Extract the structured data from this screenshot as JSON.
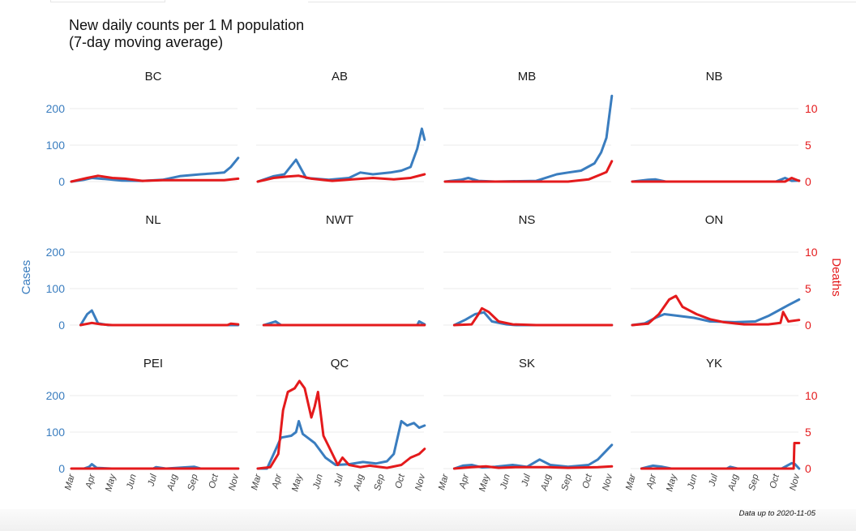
{
  "title_line1": "New daily counts per 1 M population",
  "title_line2": "(7-day moving average)",
  "footer": "Data up to 2020-11-05",
  "chart_data": {
    "type": "line",
    "facets": [
      "BC",
      "AB",
      "MB",
      "NB",
      "NL",
      "NWT",
      "NS",
      "ON",
      "PEI",
      "QC",
      "SK",
      "YK"
    ],
    "ylabel_left": "Cases",
    "ylabel_right": "Deaths",
    "ylim_left": [
      0,
      250
    ],
    "ylim_right": [
      0,
      12.5
    ],
    "yticks_left": [
      "0",
      "100",
      "200"
    ],
    "yticks_right": [
      "0",
      "5",
      "10"
    ],
    "xticks": [
      "Mar",
      "Apr",
      "May",
      "Jun",
      "Jul",
      "Aug",
      "Sep",
      "Oct",
      "Nov"
    ],
    "colors": {
      "Cases": "#3a7dbf",
      "Deaths": "#e41a1c"
    },
    "grid": true,
    "series": {
      "BC": {
        "Cases": [
          [
            "2020-03-01",
            0
          ],
          [
            "2020-03-20",
            5
          ],
          [
            "2020-04-01",
            10
          ],
          [
            "2020-04-20",
            7
          ],
          [
            "2020-05-15",
            3
          ],
          [
            "2020-06-15",
            2
          ],
          [
            "2020-07-15",
            5
          ],
          [
            "2020-08-10",
            15
          ],
          [
            "2020-09-10",
            20
          ],
          [
            "2020-10-01",
            23
          ],
          [
            "2020-10-15",
            25
          ],
          [
            "2020-10-25",
            40
          ],
          [
            "2020-11-05",
            65
          ]
        ],
        "Deaths": [
          [
            "2020-03-01",
            0
          ],
          [
            "2020-03-25",
            0.5
          ],
          [
            "2020-04-10",
            0.8
          ],
          [
            "2020-05-01",
            0.5
          ],
          [
            "2020-05-20",
            0.4
          ],
          [
            "2020-06-15",
            0.1
          ],
          [
            "2020-07-15",
            0.2
          ],
          [
            "2020-08-15",
            0.2
          ],
          [
            "2020-09-15",
            0.2
          ],
          [
            "2020-10-15",
            0.2
          ],
          [
            "2020-11-05",
            0.4
          ]
        ]
      },
      "AB": {
        "Cases": [
          [
            "2020-03-01",
            0
          ],
          [
            "2020-03-25",
            15
          ],
          [
            "2020-04-10",
            20
          ],
          [
            "2020-04-27",
            60
          ],
          [
            "2020-05-12",
            10
          ],
          [
            "2020-06-15",
            5
          ],
          [
            "2020-07-15",
            10
          ],
          [
            "2020-08-01",
            25
          ],
          [
            "2020-08-20",
            20
          ],
          [
            "2020-09-15",
            25
          ],
          [
            "2020-10-01",
            30
          ],
          [
            "2020-10-15",
            40
          ],
          [
            "2020-10-25",
            90
          ],
          [
            "2020-11-01",
            145
          ],
          [
            "2020-11-05",
            115
          ]
        ],
        "Deaths": [
          [
            "2020-03-01",
            0
          ],
          [
            "2020-03-25",
            0.5
          ],
          [
            "2020-04-15",
            0.7
          ],
          [
            "2020-05-01",
            0.8
          ],
          [
            "2020-05-20",
            0.4
          ],
          [
            "2020-06-20",
            0.1
          ],
          [
            "2020-07-20",
            0.3
          ],
          [
            "2020-08-20",
            0.5
          ],
          [
            "2020-09-20",
            0.3
          ],
          [
            "2020-10-15",
            0.5
          ],
          [
            "2020-11-05",
            1.0
          ]
        ]
      },
      "MB": {
        "Cases": [
          [
            "2020-03-01",
            0
          ],
          [
            "2020-03-25",
            5
          ],
          [
            "2020-04-05",
            10
          ],
          [
            "2020-04-20",
            2
          ],
          [
            "2020-05-15",
            0
          ],
          [
            "2020-07-15",
            2
          ],
          [
            "2020-08-15",
            20
          ],
          [
            "2020-09-01",
            25
          ],
          [
            "2020-09-20",
            30
          ],
          [
            "2020-10-10",
            50
          ],
          [
            "2020-10-20",
            80
          ],
          [
            "2020-10-28",
            120
          ],
          [
            "2020-11-05",
            235
          ]
        ],
        "Deaths": [
          [
            "2020-03-01",
            0
          ],
          [
            "2020-09-01",
            0
          ],
          [
            "2020-10-01",
            0.3
          ],
          [
            "2020-10-20",
            1.0
          ],
          [
            "2020-10-28",
            1.3
          ],
          [
            "2020-11-05",
            2.8
          ]
        ]
      },
      "NB": {
        "Cases": [
          [
            "2020-03-01",
            0
          ],
          [
            "2020-03-25",
            5
          ],
          [
            "2020-04-05",
            6
          ],
          [
            "2020-04-20",
            0
          ],
          [
            "2020-10-01",
            0
          ],
          [
            "2020-10-15",
            10
          ],
          [
            "2020-10-25",
            2
          ],
          [
            "2020-11-05",
            3
          ]
        ],
        "Deaths": [
          [
            "2020-03-01",
            0
          ],
          [
            "2020-10-15",
            0
          ],
          [
            "2020-10-25",
            0.5
          ],
          [
            "2020-11-05",
            0.1
          ]
        ]
      },
      "NL": {
        "Cases": [
          [
            "2020-03-15",
            0
          ],
          [
            "2020-03-25",
            30
          ],
          [
            "2020-04-01",
            40
          ],
          [
            "2020-04-10",
            5
          ],
          [
            "2020-04-25",
            0
          ],
          [
            "2020-11-05",
            0
          ]
        ],
        "Deaths": [
          [
            "2020-03-15",
            0
          ],
          [
            "2020-04-01",
            0.3
          ],
          [
            "2020-04-15",
            0.1
          ],
          [
            "2020-05-01",
            0
          ],
          [
            "2020-10-20",
            0
          ],
          [
            "2020-10-25",
            0.2
          ],
          [
            "2020-11-05",
            0.1
          ]
        ]
      },
      "NWT": {
        "Cases": [
          [
            "2020-03-10",
            0
          ],
          [
            "2020-03-28",
            10
          ],
          [
            "2020-04-05",
            0
          ],
          [
            "2020-10-25",
            0
          ],
          [
            "2020-10-28",
            10
          ],
          [
            "2020-11-05",
            2
          ]
        ],
        "Deaths": [
          [
            "2020-03-10",
            0
          ],
          [
            "2020-11-05",
            0
          ]
        ]
      },
      "NS": {
        "Cases": [
          [
            "2020-03-15",
            0
          ],
          [
            "2020-04-01",
            15
          ],
          [
            "2020-04-15",
            30
          ],
          [
            "2020-04-28",
            35
          ],
          [
            "2020-05-10",
            10
          ],
          [
            "2020-06-01",
            2
          ],
          [
            "2020-06-15",
            0
          ],
          [
            "2020-11-05",
            0
          ]
        ],
        "Deaths": [
          [
            "2020-03-15",
            0
          ],
          [
            "2020-04-10",
            0.1
          ],
          [
            "2020-04-20",
            1.5
          ],
          [
            "2020-04-25",
            2.3
          ],
          [
            "2020-05-05",
            1.8
          ],
          [
            "2020-05-20",
            0.5
          ],
          [
            "2020-06-10",
            0.1
          ],
          [
            "2020-07-15",
            0
          ],
          [
            "2020-11-05",
            0
          ]
        ]
      },
      "ON": {
        "Cases": [
          [
            "2020-03-01",
            0
          ],
          [
            "2020-03-20",
            5
          ],
          [
            "2020-04-05",
            20
          ],
          [
            "2020-04-18",
            30
          ],
          [
            "2020-05-10",
            25
          ],
          [
            "2020-06-01",
            20
          ],
          [
            "2020-06-25",
            10
          ],
          [
            "2020-08-01",
            8
          ],
          [
            "2020-09-01",
            10
          ],
          [
            "2020-09-20",
            25
          ],
          [
            "2020-10-05",
            40
          ],
          [
            "2020-10-20",
            55
          ],
          [
            "2020-11-05",
            70
          ]
        ],
        "Deaths": [
          [
            "2020-03-01",
            0
          ],
          [
            "2020-03-25",
            0.2
          ],
          [
            "2020-04-10",
            1.5
          ],
          [
            "2020-04-25",
            3.5
          ],
          [
            "2020-05-05",
            4.0
          ],
          [
            "2020-05-15",
            2.5
          ],
          [
            "2020-06-05",
            1.5
          ],
          [
            "2020-06-25",
            0.8
          ],
          [
            "2020-07-15",
            0.4
          ],
          [
            "2020-08-15",
            0.1
          ],
          [
            "2020-09-20",
            0.1
          ],
          [
            "2020-10-08",
            0.3
          ],
          [
            "2020-10-12",
            1.8
          ],
          [
            "2020-10-20",
            0.5
          ],
          [
            "2020-11-05",
            0.7
          ]
        ]
      },
      "PEI": {
        "Cases": [
          [
            "2020-03-20",
            0
          ],
          [
            "2020-03-28",
            5
          ],
          [
            "2020-04-01",
            12
          ],
          [
            "2020-04-08",
            2
          ],
          [
            "2020-04-30",
            0
          ],
          [
            "2020-07-01",
            0
          ],
          [
            "2020-07-05",
            4
          ],
          [
            "2020-07-20",
            0
          ],
          [
            "2020-08-15",
            3
          ],
          [
            "2020-09-01",
            5
          ],
          [
            "2020-09-10",
            0
          ],
          [
            "2020-11-05",
            0
          ]
        ],
        "Deaths": [
          [
            "2020-03-01",
            0
          ],
          [
            "2020-11-05",
            0
          ]
        ]
      },
      "QC": {
        "Cases": [
          [
            "2020-03-01",
            0
          ],
          [
            "2020-03-15",
            0
          ],
          [
            "2020-03-25",
            40
          ],
          [
            "2020-04-05",
            85
          ],
          [
            "2020-04-20",
            90
          ],
          [
            "2020-04-27",
            100
          ],
          [
            "2020-05-01",
            130
          ],
          [
            "2020-05-07",
            95
          ],
          [
            "2020-05-25",
            70
          ],
          [
            "2020-06-10",
            30
          ],
          [
            "2020-06-25",
            10
          ],
          [
            "2020-07-15",
            12
          ],
          [
            "2020-08-05",
            18
          ],
          [
            "2020-08-25",
            14
          ],
          [
            "2020-09-10",
            20
          ],
          [
            "2020-09-20",
            40
          ],
          [
            "2020-10-01",
            130
          ],
          [
            "2020-10-10",
            118
          ],
          [
            "2020-10-20",
            125
          ],
          [
            "2020-10-28",
            112
          ],
          [
            "2020-11-05",
            118
          ]
        ],
        "Deaths": [
          [
            "2020-03-01",
            0
          ],
          [
            "2020-03-20",
            0.2
          ],
          [
            "2020-04-01",
            2.0
          ],
          [
            "2020-04-08",
            8.0
          ],
          [
            "2020-04-15",
            10.5
          ],
          [
            "2020-04-25",
            11.0
          ],
          [
            "2020-05-02",
            12.0
          ],
          [
            "2020-05-10",
            11.0
          ],
          [
            "2020-05-20",
            7.0
          ],
          [
            "2020-05-25",
            8.5
          ],
          [
            "2020-05-30",
            10.5
          ],
          [
            "2020-06-07",
            4.5
          ],
          [
            "2020-06-15",
            3.0
          ],
          [
            "2020-06-28",
            0.5
          ],
          [
            "2020-07-05",
            1.5
          ],
          [
            "2020-07-15",
            0.5
          ],
          [
            "2020-08-01",
            0.2
          ],
          [
            "2020-08-15",
            0.4
          ],
          [
            "2020-09-10",
            0.1
          ],
          [
            "2020-10-01",
            0.5
          ],
          [
            "2020-10-15",
            1.5
          ],
          [
            "2020-10-28",
            2.0
          ],
          [
            "2020-11-05",
            2.7
          ]
        ]
      },
      "SK": {
        "Cases": [
          [
            "2020-03-15",
            0
          ],
          [
            "2020-03-28",
            8
          ],
          [
            "2020-04-10",
            10
          ],
          [
            "2020-04-25",
            3
          ],
          [
            "2020-05-15",
            5
          ],
          [
            "2020-06-10",
            10
          ],
          [
            "2020-07-01",
            5
          ],
          [
            "2020-07-20",
            25
          ],
          [
            "2020-08-05",
            10
          ],
          [
            "2020-09-01",
            5
          ],
          [
            "2020-10-01",
            10
          ],
          [
            "2020-10-15",
            25
          ],
          [
            "2020-11-05",
            65
          ]
        ],
        "Deaths": [
          [
            "2020-03-15",
            0
          ],
          [
            "2020-04-10",
            0.2
          ],
          [
            "2020-05-01",
            0.3
          ],
          [
            "2020-05-20",
            0.1
          ],
          [
            "2020-06-15",
            0.2
          ],
          [
            "2020-08-01",
            0.2
          ],
          [
            "2020-09-01",
            0.1
          ],
          [
            "2020-10-15",
            0.2
          ],
          [
            "2020-11-05",
            0.3
          ]
        ]
      },
      "YK": {
        "Cases": [
          [
            "2020-03-15",
            0
          ],
          [
            "2020-03-25",
            5
          ],
          [
            "2020-04-01",
            8
          ],
          [
            "2020-04-15",
            5
          ],
          [
            "2020-04-28",
            0
          ],
          [
            "2020-07-20",
            0
          ],
          [
            "2020-07-25",
            5
          ],
          [
            "2020-08-05",
            0
          ],
          [
            "2020-10-10",
            0
          ],
          [
            "2020-10-25",
            15
          ],
          [
            "2020-10-30",
            12
          ],
          [
            "2020-11-05",
            0
          ]
        ],
        "Deaths": [
          [
            "2020-03-15",
            0
          ],
          [
            "2020-10-28",
            0
          ],
          [
            "2020-10-29",
            3.5
          ],
          [
            "2020-11-05",
            3.5
          ]
        ]
      }
    }
  }
}
